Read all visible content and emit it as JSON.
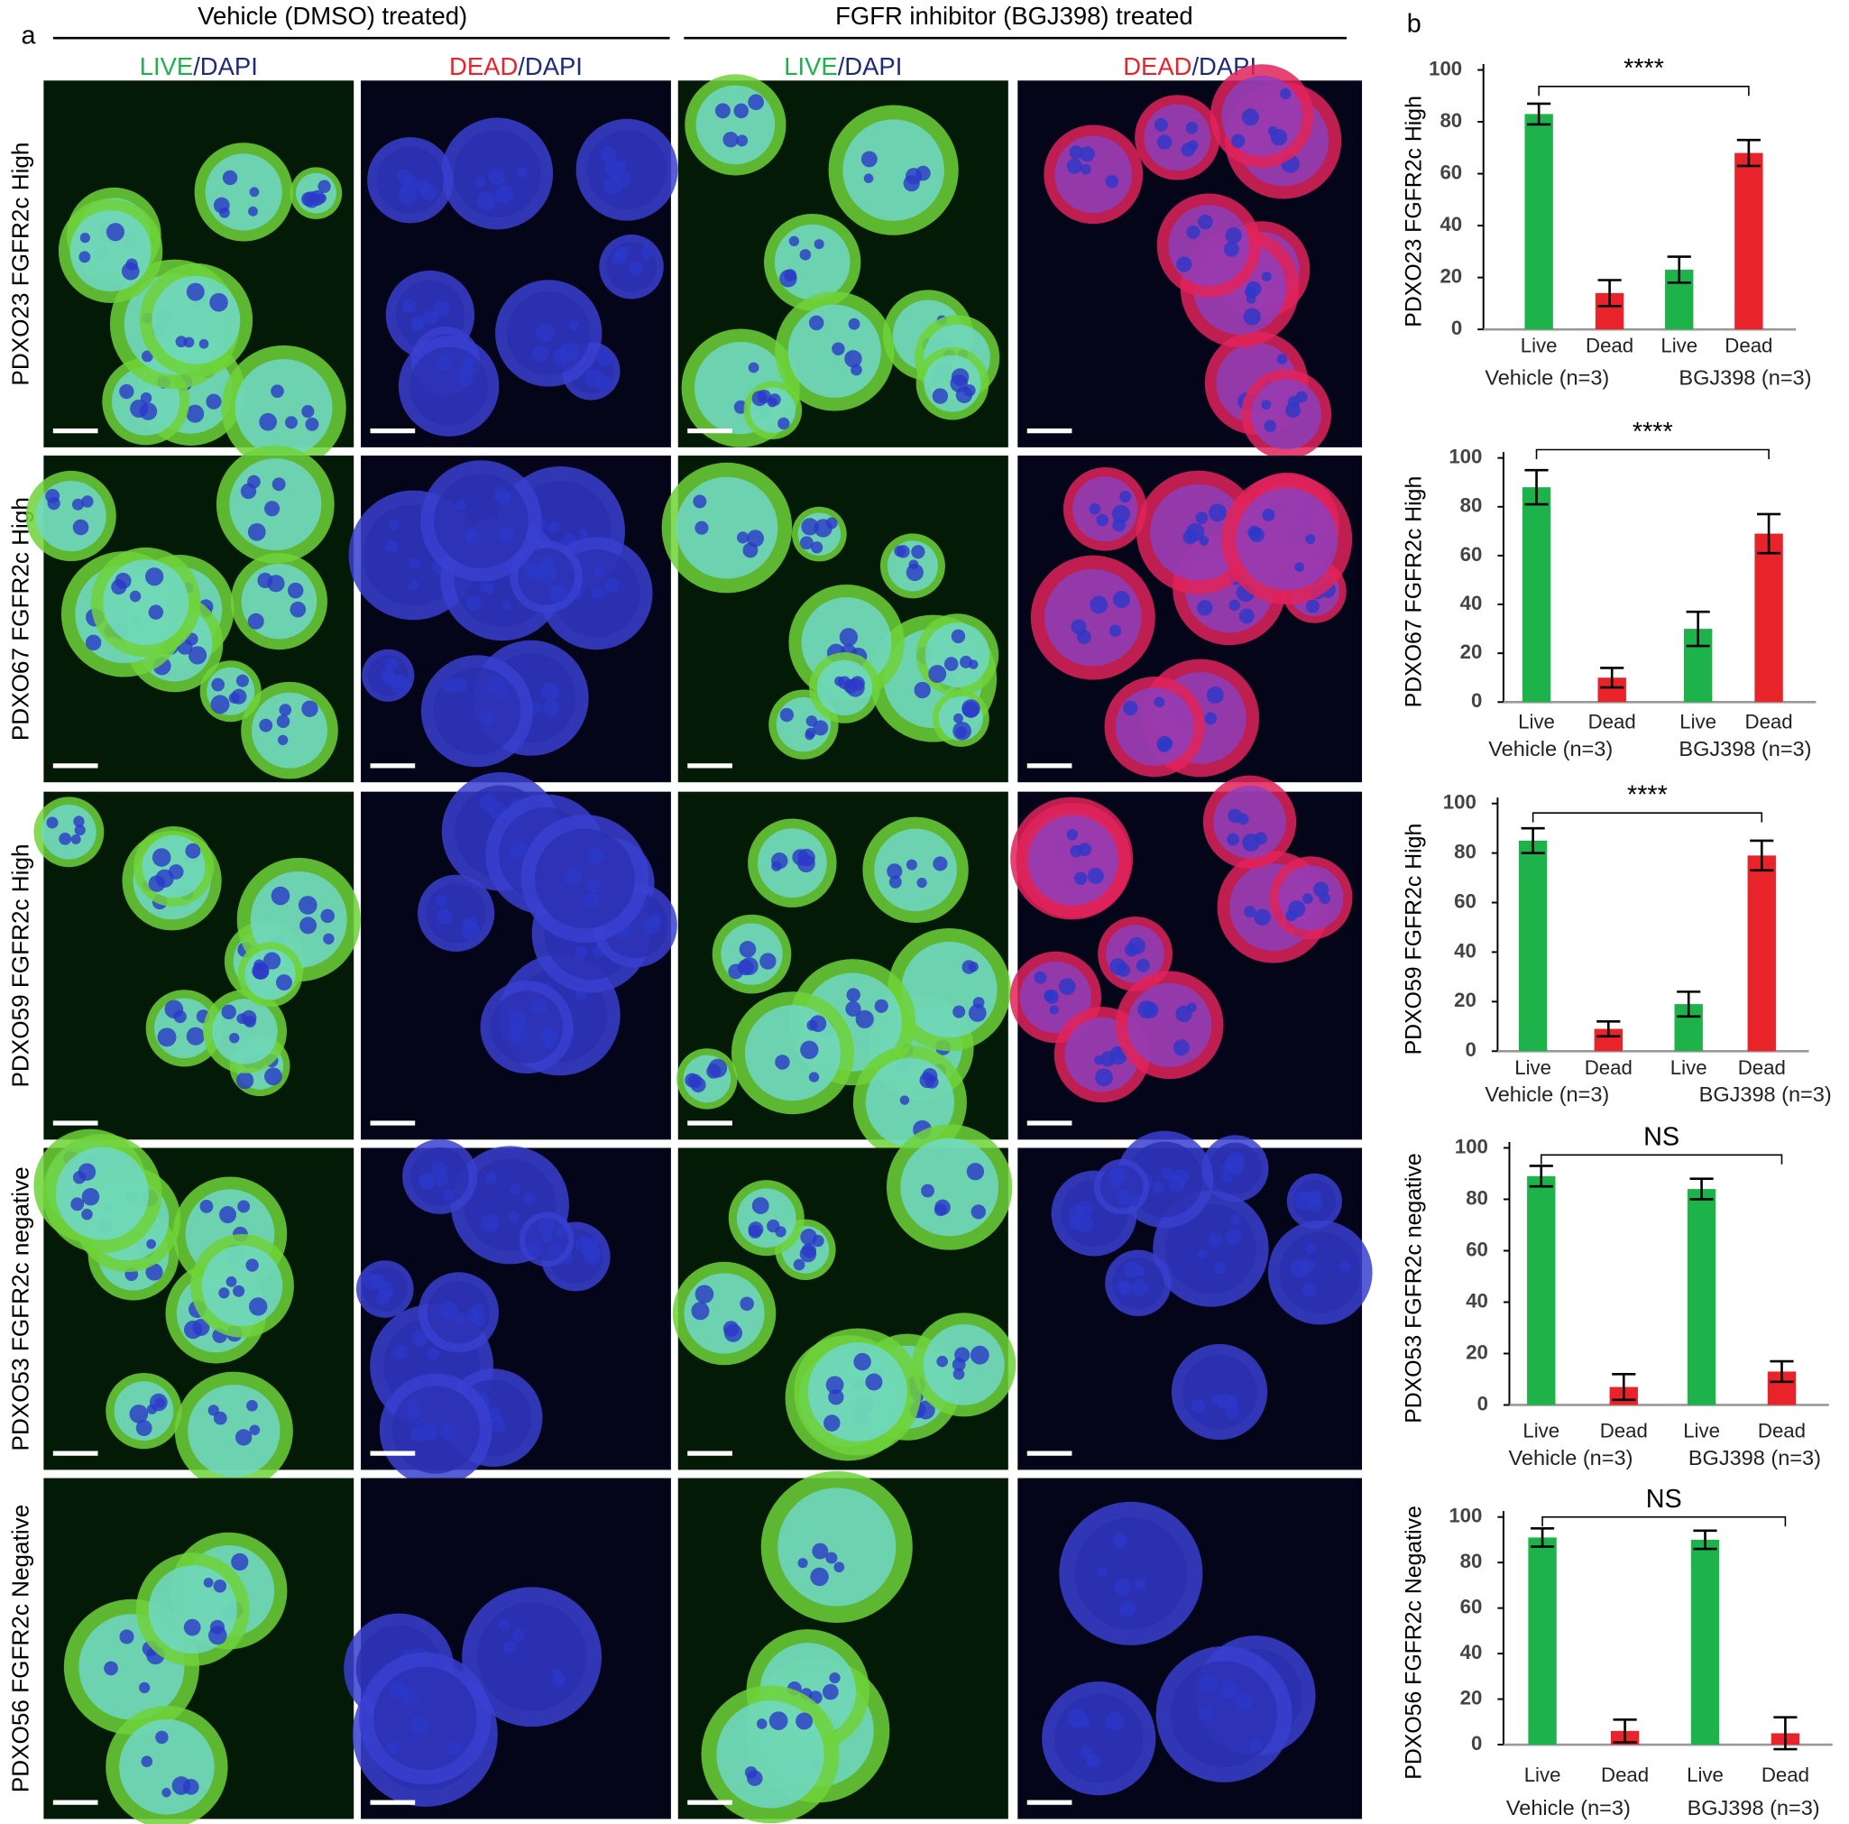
{
  "panel_a": {
    "label": "a",
    "groups": [
      "Vehicle (DMSO) treated)",
      "FGFR inhibitor (BGJ398) treated"
    ],
    "columns": [
      [
        "LIVE",
        "/DAPI"
      ],
      [
        "DEAD",
        "/DAPI"
      ],
      [
        "LIVE",
        "/DAPI"
      ],
      [
        "DEAD",
        "/DAPI"
      ]
    ],
    "rows": [
      "PDXO23 FGFR2c High",
      "PDXO67 FGFR2c High",
      "PDXO59 FGFR2c High",
      "PDXO53 FGFR2c negative",
      "PDXO56 FGFR2c Negative"
    ]
  },
  "panel_b": {
    "label": "b"
  },
  "chart_data": [
    {
      "type": "bar",
      "ylabel": "PDXO23 FGFR2c High",
      "categories": [
        "Live",
        "Dead",
        "Live",
        "Dead"
      ],
      "values": [
        83,
        14,
        23,
        68
      ],
      "errors": [
        4,
        5,
        5,
        5
      ],
      "colors": [
        "#1db34a",
        "#e8232a",
        "#1db34a",
        "#e8232a"
      ],
      "groups": [
        "Vehicle (n=3)",
        "BGJ398 (n=3)"
      ],
      "annotation": "****",
      "ylim": [
        0,
        100
      ],
      "yticks": [
        0,
        20,
        40,
        60,
        80,
        100
      ]
    },
    {
      "type": "bar",
      "ylabel": "PDXO67 FGFR2c High",
      "categories": [
        "Live",
        "Dead",
        "Live",
        "Dead"
      ],
      "values": [
        88,
        10,
        30,
        69
      ],
      "errors": [
        7,
        4,
        7,
        8
      ],
      "colors": [
        "#1db34a",
        "#e8232a",
        "#1db34a",
        "#e8232a"
      ],
      "groups": [
        "Vehicle (n=3)",
        "BGJ398 (n=3)"
      ],
      "annotation": "****",
      "ylim": [
        0,
        100
      ],
      "yticks": [
        0,
        20,
        40,
        60,
        80,
        100
      ]
    },
    {
      "type": "bar",
      "ylabel": "PDXO59 FGFR2c High",
      "categories": [
        "Live",
        "Dead",
        "Live",
        "Dead"
      ],
      "values": [
        85,
        9,
        19,
        79
      ],
      "errors": [
        5,
        3,
        5,
        6
      ],
      "colors": [
        "#1db34a",
        "#e8232a",
        "#1db34a",
        "#e8232a"
      ],
      "groups": [
        "Vehicle (n=3)",
        "BGJ398 (n=3)"
      ],
      "annotation": "****",
      "ylim": [
        0,
        100
      ],
      "yticks": [
        0,
        20,
        40,
        60,
        80,
        100
      ]
    },
    {
      "type": "bar",
      "ylabel": "PDXO53 FGFR2c negative",
      "categories": [
        "Live",
        "Dead",
        "Live",
        "Dead"
      ],
      "values": [
        89,
        7,
        84,
        13
      ],
      "errors": [
        4,
        5,
        4,
        4
      ],
      "colors": [
        "#1db34a",
        "#e8232a",
        "#1db34a",
        "#e8232a"
      ],
      "groups": [
        "Vehicle (n=3)",
        "BGJ398 (n=3)"
      ],
      "annotation": "NS",
      "ylim": [
        0,
        100
      ],
      "yticks": [
        0,
        20,
        40,
        60,
        80,
        100
      ]
    },
    {
      "type": "bar",
      "ylabel": "PDXO56 FGFR2c Negative",
      "categories": [
        "Live",
        "Dead",
        "Live",
        "Dead"
      ],
      "values": [
        91,
        6,
        90,
        5
      ],
      "errors": [
        4,
        5,
        4,
        7
      ],
      "colors": [
        "#1db34a",
        "#e8232a",
        "#1db34a",
        "#e8232a"
      ],
      "groups": [
        "Vehicle (n=3)",
        "BGJ398 (n=3)"
      ],
      "annotation": "NS",
      "ylim": [
        0,
        100
      ],
      "yticks": [
        0,
        20,
        40,
        60,
        80,
        100
      ]
    }
  ]
}
